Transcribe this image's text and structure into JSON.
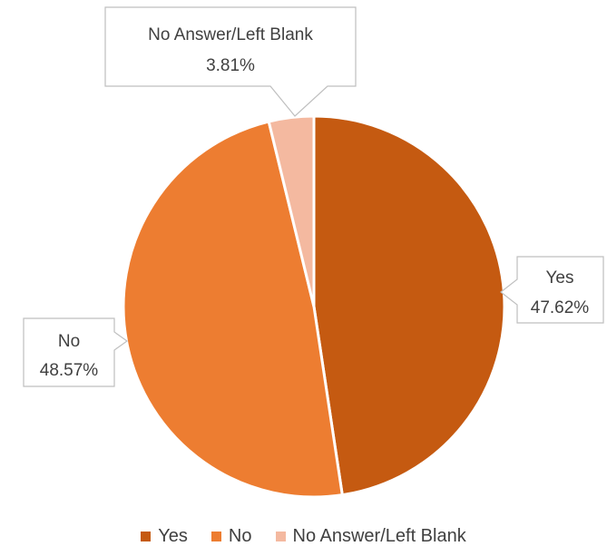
{
  "chart_data": {
    "type": "pie",
    "slices": [
      {
        "label": "Yes",
        "value": 47.62,
        "value_label": "47.62%",
        "color": "#c55a11"
      },
      {
        "label": "No",
        "value": 48.57,
        "value_label": "48.57%",
        "color": "#ed7d31"
      },
      {
        "label": "No Answer/Left Blank",
        "value": 3.81,
        "value_label": "3.81%",
        "color": "#f4b9a0"
      }
    ],
    "start_angle_deg": 0,
    "direction": "clockwise",
    "legend_position": "bottom",
    "data_labels": "callouts"
  },
  "legend": {
    "items": [
      {
        "label": "Yes",
        "color": "#c55a11"
      },
      {
        "label": "No",
        "color": "#ed7d31"
      },
      {
        "label": "No Answer/Left Blank",
        "color": "#f4b9a0"
      }
    ]
  }
}
